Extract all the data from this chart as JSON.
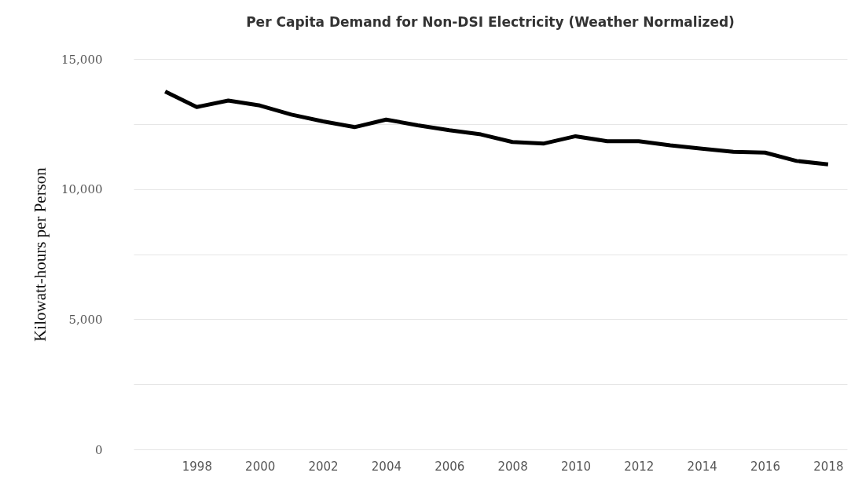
{
  "chart_data": {
    "type": "line",
    "title": "Per Capita Demand for Non-DSI Electricity (Weather Normalized)",
    "ylabel": "Kilowatt-hours per Person",
    "x": [
      1997,
      1998,
      1999,
      2000,
      2001,
      2002,
      2003,
      2004,
      2005,
      2006,
      2007,
      2008,
      2009,
      2010,
      2011,
      2012,
      2013,
      2014,
      2015,
      2016,
      2017,
      2018
    ],
    "series": [
      {
        "color": "#000000",
        "values": [
          13750,
          13150,
          13400,
          13210,
          12860,
          12600,
          12380,
          12670,
          12450,
          12260,
          12100,
          11810,
          11750,
          12030,
          11840,
          11840,
          11680,
          11550,
          11430,
          11400,
          11080,
          10950
        ]
      }
    ],
    "xlim": [
      1996,
      2018.6
    ],
    "xticks": [
      1998,
      2000,
      2002,
      2004,
      2006,
      2008,
      2010,
      2012,
      2014,
      2016,
      2018
    ],
    "ylim": [
      0,
      15000
    ],
    "yticks": [
      {
        "value": 0,
        "label": "0"
      },
      {
        "value": 2500,
        "label": null
      },
      {
        "value": 5000,
        "label": "5,000"
      },
      {
        "value": 7500,
        "label": null
      },
      {
        "value": 10000,
        "label": "10,000"
      },
      {
        "value": 12500,
        "label": null
      },
      {
        "value": 15000,
        "label": "15,000"
      }
    ],
    "grid": "y",
    "marker": "none",
    "line_style": "solid"
  }
}
